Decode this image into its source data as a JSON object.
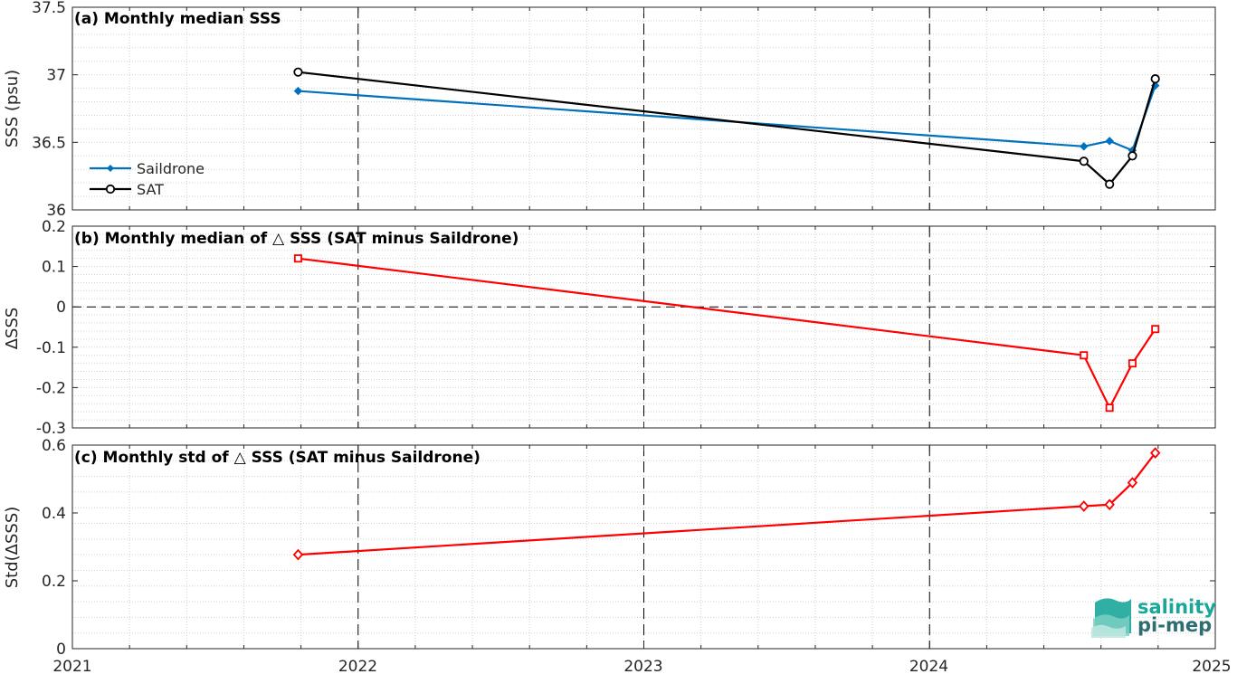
{
  "colors": {
    "saildrone": "#0072BD",
    "sat": "#000000",
    "delta": "#FF0000",
    "grid_minor": "#D0D0D0",
    "frame": "#262626",
    "logo_teal": "#1AA79A",
    "logo_dark": "#2E6E73"
  },
  "x_axis": {
    "range": [
      2021,
      2025
    ],
    "tick_labels": [
      "2021",
      "2022",
      "2023",
      "2024",
      "2025"
    ]
  },
  "logo": {
    "icon": "salinity-waves-icon",
    "line1": "salinity",
    "line2": "pi-mep"
  },
  "chart_data": [
    {
      "type": "line",
      "panel": "a",
      "title": "(a) Monthly median SSS",
      "ylabel": "SSS (psu)",
      "ylim": [
        36,
        37.5
      ],
      "ytick_labels": [
        "36",
        "36.5",
        "37",
        "37.5"
      ],
      "grid": true,
      "legend_position": "left",
      "x": [
        2021.79,
        2024.54,
        2024.63,
        2024.71,
        2024.79
      ],
      "series": [
        {
          "name": "Saildrone",
          "marker": "filled-diamond",
          "values": [
            36.88,
            36.47,
            36.51,
            36.44,
            36.92
          ]
        },
        {
          "name": "SAT",
          "marker": "circle",
          "values": [
            37.02,
            36.36,
            36.19,
            36.4,
            36.97
          ]
        }
      ]
    },
    {
      "type": "line",
      "panel": "b",
      "title": "(b) Monthly median of △ SSS (SAT minus Saildrone)",
      "ylabel": "ΔSSS",
      "ylim": [
        -0.3,
        0.2
      ],
      "ytick_labels": [
        "-0.3",
        "-0.2",
        "-0.1",
        "0",
        "0.1",
        "0.2"
      ],
      "grid": true,
      "reference_line": 0,
      "x": [
        2021.79,
        2024.54,
        2024.63,
        2024.71,
        2024.79
      ],
      "series": [
        {
          "marker": "square",
          "values": [
            0.12,
            -0.12,
            -0.25,
            -0.14,
            -0.055
          ]
        }
      ]
    },
    {
      "type": "line",
      "panel": "c",
      "title": "(c) Monthly std of △ SSS (SAT minus Saildrone)",
      "ylabel": "Std(ΔSSS)",
      "ylim": [
        0,
        0.65
      ],
      "ytick_labels": [
        "0",
        "0.2",
        "0.4",
        "0.6"
      ],
      "grid": true,
      "x": [
        2021.79,
        2024.54,
        2024.63,
        2024.71,
        2024.79
      ],
      "series": [
        {
          "marker": "diamond",
          "values": [
            0.3,
            0.455,
            0.46,
            0.53,
            0.625
          ]
        }
      ]
    }
  ]
}
